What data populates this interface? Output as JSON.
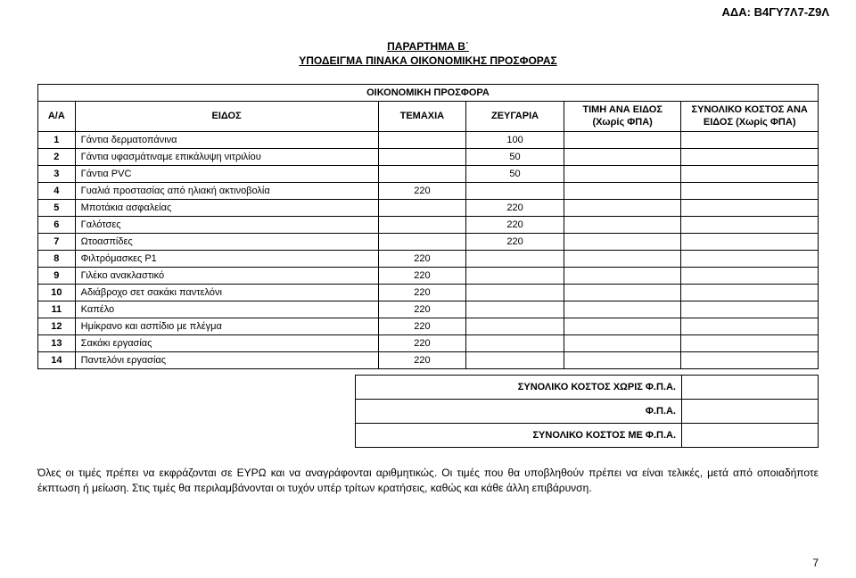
{
  "header": {
    "ada_label": "ΑΔΑ: Β4ΓΥ7Λ7-Ζ9Λ",
    "title_line1": "ΠΑΡΑΡΤΗΜΑ Β΄",
    "title_line2": "ΥΠΟΔΕΙΓΜΑ ΠΙΝΑΚΑ ΟΙΚΟΝΟΜΙΚΗΣ ΠΡΟΣΦΟΡΑΣ",
    "super_header": "ΟΙΚΟΝΟΜΙΚΗ ΠΡΟΣΦΟΡΑ"
  },
  "columns": {
    "aa": "Α/Α",
    "eidos": "ΕΙΔΟΣ",
    "temaxia": "ΤΕΜΑΧΙΑ",
    "zeugaria": "ΖΕΥΓΑΡΙΑ",
    "timi": "ΤΙΜΗ ΑΝΑ ΕΙΔΟΣ (Χωρίς ΦΠΑ)",
    "synoliko": "ΣΥΝΟΛΙΚΟ ΚΟΣΤΟΣ ΑΝΑ ΕΙΔΟΣ (Χωρίς ΦΠΑ)"
  },
  "rows": [
    {
      "n": "1",
      "desc": "Γάντια δερματοπάνινα",
      "tem": "",
      "zeu": "100"
    },
    {
      "n": "2",
      "desc": "Γάντια υφασμάτιναμε επικάλυψη νιτριλίου",
      "tem": "",
      "zeu": "50"
    },
    {
      "n": "3",
      "desc": "Γάντια PVC",
      "tem": "",
      "zeu": "50"
    },
    {
      "n": "4",
      "desc": "Γυαλιά προστασίας από ηλιακή ακτινοβολία",
      "tem": "220",
      "zeu": ""
    },
    {
      "n": "5",
      "desc": "Μποτάκια ασφαλείας",
      "tem": "",
      "zeu": "220"
    },
    {
      "n": "6",
      "desc": "Γαλότσες",
      "tem": "",
      "zeu": "220"
    },
    {
      "n": "7",
      "desc": "Ωτοασπίδες",
      "tem": "",
      "zeu": "220"
    },
    {
      "n": "8",
      "desc": "Φιλτρόμασκες Ρ1",
      "tem": "220",
      "zeu": ""
    },
    {
      "n": "9",
      "desc": "Γιλέκο ανακλαστικό",
      "tem": "220",
      "zeu": ""
    },
    {
      "n": "10",
      "desc": "Αδιάβροχο σετ σακάκι παντελόνι",
      "tem": "220",
      "zeu": ""
    },
    {
      "n": "11",
      "desc": "Καπέλο",
      "tem": "220",
      "zeu": ""
    },
    {
      "n": "12",
      "desc": "Ημίκρανο και ασπίδιο με πλέγμα",
      "tem": "220",
      "zeu": ""
    },
    {
      "n": "13",
      "desc": "Σακάκι εργασίας",
      "tem": "220",
      "zeu": ""
    },
    {
      "n": "14",
      "desc": "Παντελόνι εργασίας",
      "tem": "220",
      "zeu": ""
    }
  ],
  "totals": {
    "row1": "ΣΥΝΟΛΙΚΟ ΚΟΣΤΟΣ ΧΩΡΙΣ Φ.Π.Α.",
    "row2": "Φ.Π.Α.",
    "row3": "ΣΥΝΟΛΙΚΟ ΚΟΣΤΟΣ ΜΕ Φ.Π.Α."
  },
  "note": "Όλες οι τιμές πρέπει να εκφράζονται σε ΕΥΡΩ και να αναγράφονται αριθμητικώς. Οι τιμές που θα υποβληθούν πρέπει να είναι τελικές, μετά από οποιαδήποτε έκπτωση ή μείωση. Στις τιμές θα περιλαμβάνονται οι τυχόν υπέρ τρίτων κρατήσεις, καθώς και κάθε άλλη επιβάρυνση.",
  "page_number": "7"
}
